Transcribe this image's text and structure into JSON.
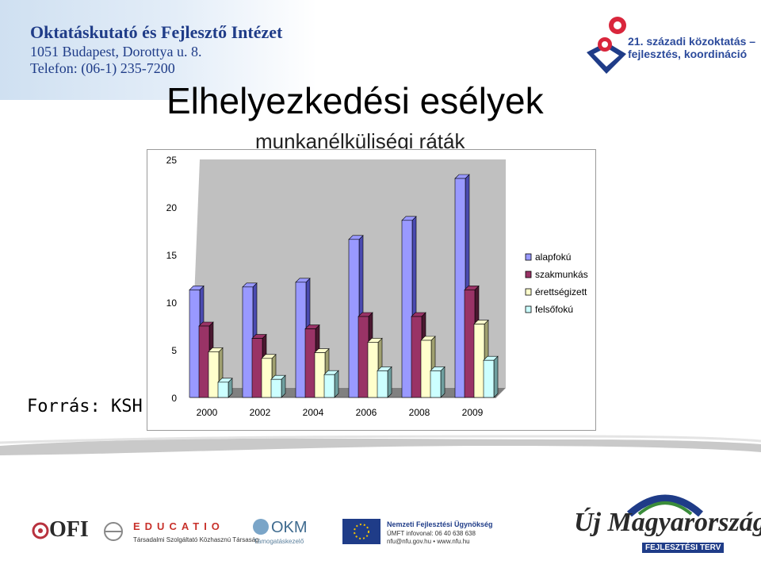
{
  "header": {
    "institute_name": "Oktatáskutató és Fejlesztő Intézet",
    "address": "1051 Budapest, Dorottya u. 8.",
    "phone": "Telefon: (06-1) 235-7200",
    "program_line1": "21. századi közoktatás –",
    "program_line2": "fejlesztés, koordináció"
  },
  "slide": {
    "title": "Elhelyezkedési esélyek",
    "subtitle": "munkanélküliségi ráták",
    "source": "Forrás: KSH"
  },
  "chart_data": {
    "type": "bar",
    "categories": [
      "2000",
      "2002",
      "2004",
      "2006",
      "2008",
      "2009"
    ],
    "series": [
      {
        "name": "alapfokú",
        "values": [
          11.3,
          11.6,
          12.1,
          16.6,
          18.6,
          23.0
        ]
      },
      {
        "name": "szakmunkás",
        "values": [
          7.5,
          6.2,
          7.2,
          8.5,
          8.5,
          11.3
        ]
      },
      {
        "name": "érettségizett",
        "values": [
          4.8,
          4.1,
          4.7,
          5.8,
          6.0,
          7.7
        ]
      },
      {
        "name": "felsőfokú",
        "values": [
          1.6,
          1.9,
          2.4,
          2.8,
          2.8,
          3.9
        ]
      }
    ],
    "yticks": [
      "0",
      "5",
      "10",
      "15",
      "20",
      "25"
    ],
    "ylim": [
      0,
      25
    ],
    "legend_position": "right",
    "colors": [
      "#9999ff",
      "#993366",
      "#ffffcc",
      "#ccffff"
    ],
    "colors_side": [
      "#4a4ab0",
      "#4a1830",
      "#a0a070",
      "#6f9f9f"
    ],
    "wall_color": "#c0c0c0",
    "floor_color": "#808080"
  },
  "footer": {
    "ofi": "OFI",
    "educatio": "EDUCATIO",
    "educatio_sub": "Társadalmi Szolgáltató Közhasznú Társaság",
    "okm": "OKM",
    "okm_sub": "Támogatáskezelő",
    "nfu_title": "Nemzeti Fejlesztési Ügynökség",
    "nfu_line1": "ÚMFT infovonal: 06 40 638 638",
    "nfu_line2": "nfu@nfu.gov.hu • www.nfu.hu",
    "umft_title": "Új Magyarország",
    "umft_sub": "FEJLESZTÉSI TERV"
  }
}
